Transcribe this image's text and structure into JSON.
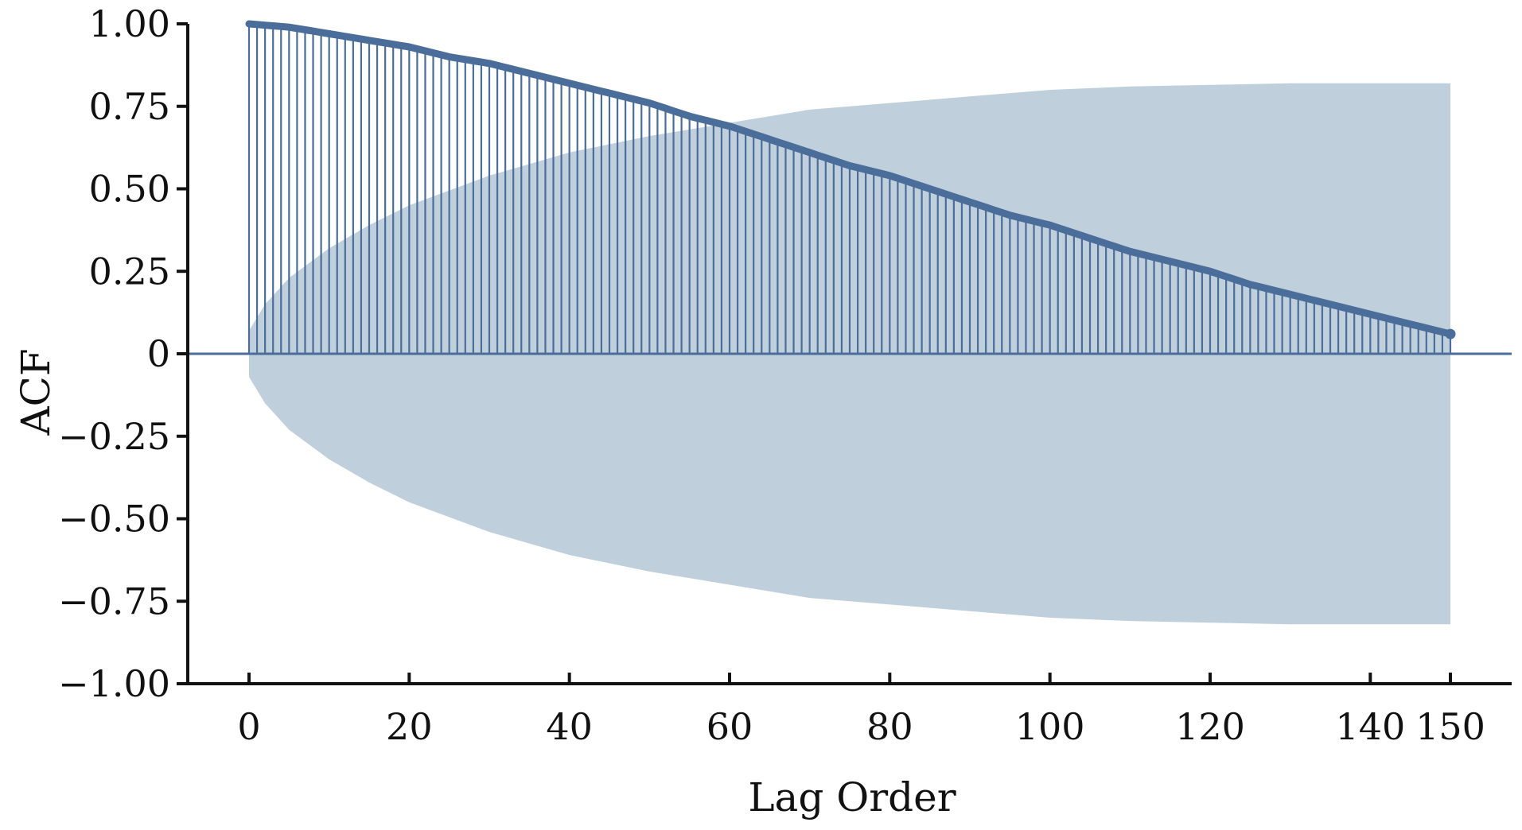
{
  "colors": {
    "stem": "#4a6d9a",
    "band": "#c0cfdc",
    "axis": "#111111",
    "zero_line": "#4a6d9a"
  },
  "chart_data": {
    "type": "stem",
    "xlabel": "Lag Order",
    "ylabel": "ACF",
    "xlim": [
      0,
      150
    ],
    "ylim": [
      -1.0,
      1.0
    ],
    "x_ticks": [
      0,
      20,
      40,
      60,
      80,
      100,
      120,
      140,
      150
    ],
    "x_tick_labels": [
      "0",
      "20",
      "40",
      "60",
      "80",
      "100",
      "120",
      "140",
      "150"
    ],
    "y_ticks": [
      1.0,
      0.75,
      0.5,
      0.25,
      0,
      -0.25,
      -0.5,
      -0.75,
      -1.0
    ],
    "y_tick_labels": [
      "1.00",
      "0.75",
      "0.50",
      "0.25",
      "0",
      "−0.25",
      "−0.50",
      "−0.75",
      "−1.00"
    ],
    "grid": false,
    "series": [
      {
        "lags": [
          0,
          5,
          10,
          15,
          20,
          25,
          30,
          35,
          40,
          45,
          50,
          55,
          60,
          65,
          70,
          75,
          80,
          85,
          90,
          95,
          100,
          105,
          110,
          115,
          120,
          125,
          130,
          135,
          140,
          145,
          150
        ],
        "acf": [
          1.0,
          0.99,
          0.97,
          0.95,
          0.93,
          0.9,
          0.88,
          0.85,
          0.82,
          0.79,
          0.76,
          0.72,
          0.69,
          0.65,
          0.61,
          0.57,
          0.54,
          0.5,
          0.46,
          0.42,
          0.39,
          0.35,
          0.31,
          0.28,
          0.25,
          0.21,
          0.18,
          0.15,
          0.12,
          0.09,
          0.06
        ]
      }
    ],
    "confidence_band": {
      "lags": [
        0,
        2,
        5,
        10,
        15,
        20,
        30,
        40,
        50,
        60,
        70,
        80,
        90,
        100,
        110,
        120,
        130,
        140,
        150
      ],
      "upper": [
        0.07,
        0.15,
        0.23,
        0.32,
        0.39,
        0.45,
        0.54,
        0.61,
        0.66,
        0.7,
        0.74,
        0.76,
        0.78,
        0.8,
        0.81,
        0.815,
        0.82,
        0.82,
        0.82
      ]
    }
  }
}
